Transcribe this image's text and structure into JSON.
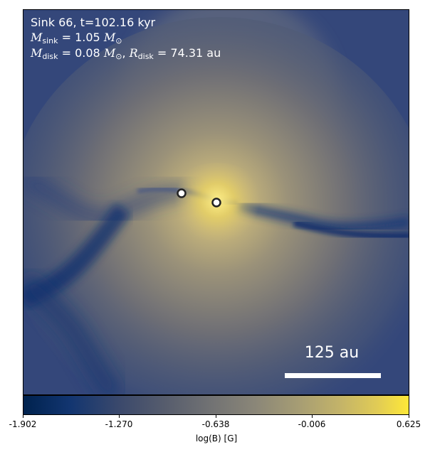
{
  "annotation": {
    "line1": "Sink 66, t=102.16 kyr",
    "msink_symbol": "M",
    "msink_sub": "sink",
    "msink_value": " = 1.05 ",
    "msun_symbol": "M",
    "msun_sub": "⊙",
    "mdisk_symbol": "M",
    "mdisk_sub": "disk",
    "mdisk_value": " = 0.08 ",
    "rdisk_symbol": "R",
    "rdisk_sub": "disk",
    "rdisk_value": " = 74.31 au",
    "sep": ", "
  },
  "scalebar": {
    "label": "125 au"
  },
  "colorbar": {
    "label": "log(B) [G]",
    "ticks": [
      "-1.902",
      "-1.270",
      "-0.638",
      "-0.006",
      "0.625"
    ],
    "colormap": "cividis",
    "min": -1.902,
    "max": 0.625
  },
  "sinks": [
    {
      "name": "sink-a"
    },
    {
      "name": "sink-b"
    }
  ],
  "colors": {
    "background_blue": "#34477a",
    "dark_blue": "#0a2a6a",
    "bright_yellow": "#fee838",
    "sink_fill": "#ffffff",
    "sink_edge": "#222222"
  }
}
